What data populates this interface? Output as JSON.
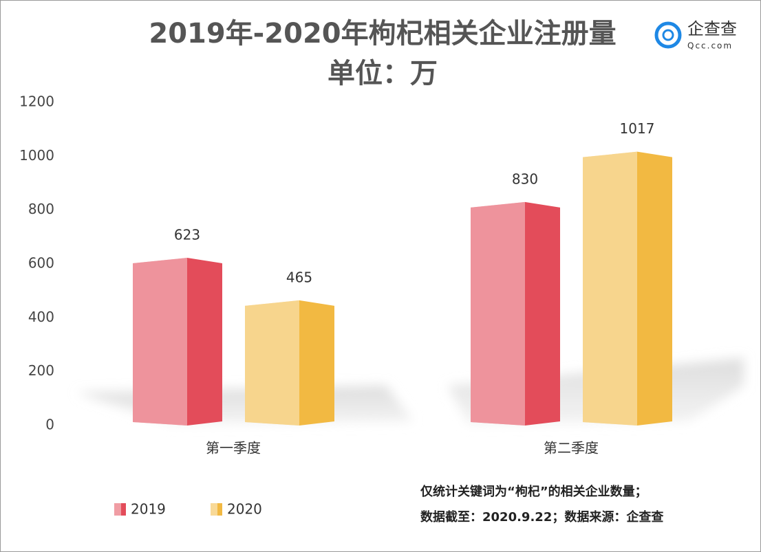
{
  "chart_data": {
    "type": "bar",
    "title": "2019年-2020年枸杞相关企业注册量",
    "subtitle": "单位：万",
    "categories": [
      "第一季度",
      "第二季度"
    ],
    "series": [
      {
        "name": "2019",
        "color": "#e34c5a",
        "values": [
          623,
          830
        ]
      },
      {
        "name": "2020",
        "color": "#f2b942",
        "values": [
          465,
          1017
        ]
      }
    ],
    "ylim": [
      0,
      1200
    ],
    "yticks": [
      0,
      200,
      400,
      600,
      800,
      1000,
      1200
    ],
    "grid": false,
    "legend": "bottom-left",
    "notes": [
      "仅统计关键词为“枸杞”的相关企业数量；",
      "数据截至：2020.9.22；数据来源：企查查"
    ],
    "logo": {
      "name": "企查查",
      "site": "Qcc.com"
    }
  }
}
